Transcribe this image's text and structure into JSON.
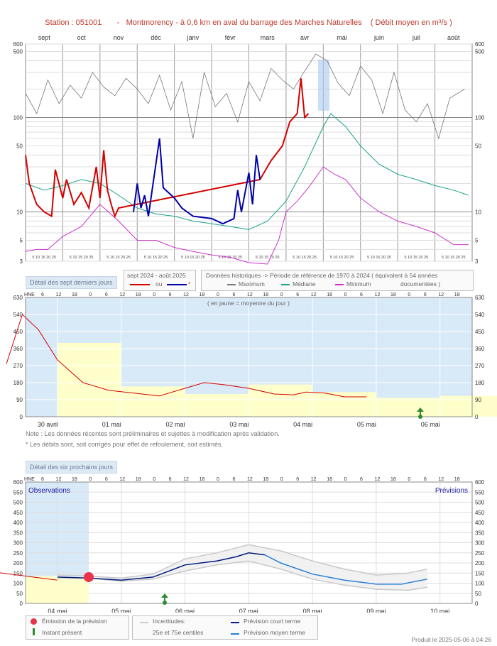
{
  "title": "Station : 051001       -   Montmorency - à 0,6 km en aval du barrage des Marches Naturelles    ( Débit moyen en m³/s )",
  "panel1": {
    "months": [
      "sept",
      "oct",
      "nov",
      "déc",
      "janv",
      "févr",
      "mars",
      "avr",
      "mai",
      "juin",
      "juil",
      "août"
    ],
    "day_ticks": "5 10 15 20 25",
    "y_ticks": [
      "600",
      "500",
      "100",
      "50",
      "10",
      "5",
      "3"
    ]
  },
  "legend1": {
    "detail_label": "Détail des sept derniers jours",
    "period_label": "sept 2024 - août 2025",
    "ou_label": "ou",
    "star_label": "*",
    "hist_label": "Données historiques -> Période de référence  de 1970 à 2024    ( équivalent à 54 années",
    "max_label": "Maximum",
    "median_label": "Médiane",
    "min_label": "Minimum",
    "documented_label": "documentées )"
  },
  "panel2": {
    "hne_label": "HNE",
    "hour_ticks": [
      "6",
      "12",
      "18",
      "0",
      "6",
      "12",
      "18",
      "0",
      "6",
      "12",
      "18",
      "0",
      "6",
      "12",
      "18",
      "0",
      "6",
      "12",
      "18",
      "0",
      "6",
      "12",
      "18",
      "0",
      "6",
      "12",
      "18"
    ],
    "y_ticks": [
      "630",
      "540",
      "450",
      "360",
      "270",
      "180",
      "90",
      "0"
    ],
    "day_labels": [
      "30 avril",
      "01 mai",
      "02 mai",
      "03 mai",
      "04 mai",
      "05 mai",
      "06 mai"
    ],
    "annotation": "( en jaune = moyenne du jour )"
  },
  "notes": {
    "note1": "Note : Les données récentes sont préliminaires et sujettes à modification après validation.",
    "note2": "* Les débits sont, soit corrigés pour effet de refoulement, soit estimés."
  },
  "panel3": {
    "detail_label": "Détail des six prochains jours",
    "hne_label": "HNE",
    "observations_label": "Observations",
    "previsions_label": "Prévisions",
    "y_ticks": [
      "600",
      "550",
      "500",
      "450",
      "400",
      "350",
      "300",
      "250",
      "200",
      "150",
      "100",
      "50",
      "0"
    ],
    "day_labels": [
      "04 mai",
      "05 mai",
      "06 mai",
      "07 mai",
      "08 mai",
      "09 mai",
      "10 mai"
    ]
  },
  "legend3": {
    "emission_label": "Émission de la prévision",
    "present_label": "Instant présent",
    "uncert_label": "Incertitudes:",
    "centiles_label": "25e et 75e centiles",
    "short_label": "Prévision court terme",
    "medium_label": "Prévision moyen terme"
  },
  "footer": "Produit le 2025-05-06 à 04:26",
  "colors": {
    "observed": "#d40000",
    "corrected": "#0000aa",
    "maximum": "#777777",
    "median": "#1aa386",
    "minimum": "#cc33cc",
    "forecast_short": "#001a80",
    "forecast_medium": "#2a7fd4",
    "daily_mean": "#ffffcc",
    "observation_zone": "#d8e9f8"
  },
  "chart_data": [
    {
      "type": "line",
      "title": "Débit moyen en m³/s - sept 2024 à août 2025",
      "y_scale": "log",
      "ylim": [
        3,
        600
      ],
      "x_months": [
        "sept",
        "oct",
        "nov",
        "déc",
        "janv",
        "févr",
        "mars",
        "avr",
        "mai",
        "juin",
        "juil",
        "août"
      ],
      "series": [
        {
          "name": "Maximum",
          "points": [
            [
              0,
              180
            ],
            [
              0.3,
              110
            ],
            [
              0.6,
              250
            ],
            [
              0.9,
              140
            ],
            [
              1.2,
              220
            ],
            [
              1.5,
              160
            ],
            [
              1.8,
              300
            ],
            [
              2.1,
              210
            ],
            [
              2.4,
              170
            ],
            [
              2.7,
              260
            ],
            [
              3,
              200
            ],
            [
              3.3,
              140
            ],
            [
              3.6,
              280
            ],
            [
              3.9,
              120
            ],
            [
              4.2,
              240
            ],
            [
              4.5,
              60
            ],
            [
              4.8,
              300
            ],
            [
              5.1,
              130
            ],
            [
              5.4,
              180
            ],
            [
              5.7,
              90
            ],
            [
              6,
              240
            ],
            [
              6.3,
              150
            ],
            [
              6.6,
              330
            ],
            [
              6.9,
              250
            ],
            [
              7.2,
              200
            ],
            [
              7.5,
              310
            ],
            [
              7.8,
              470
            ],
            [
              8.1,
              400
            ],
            [
              8.4,
              230
            ],
            [
              8.7,
              170
            ],
            [
              9,
              350
            ],
            [
              9.3,
              250
            ],
            [
              9.6,
              110
            ],
            [
              9.9,
              300
            ],
            [
              10.2,
              120
            ],
            [
              10.5,
              90
            ],
            [
              10.8,
              140
            ],
            [
              11.1,
              60
            ],
            [
              11.4,
              160
            ],
            [
              11.8,
              200
            ]
          ]
        },
        {
          "name": "Médiane",
          "points": [
            [
              0,
              20
            ],
            [
              0.5,
              17
            ],
            [
              1,
              19
            ],
            [
              1.5,
              22
            ],
            [
              2,
              20
            ],
            [
              2.5,
              15
            ],
            [
              3,
              11
            ],
            [
              3.5,
              9.5
            ],
            [
              4,
              9
            ],
            [
              4.5,
              8
            ],
            [
              5,
              7.5
            ],
            [
              5.5,
              7
            ],
            [
              6,
              6.5
            ],
            [
              6.5,
              8
            ],
            [
              7,
              13
            ],
            [
              7.5,
              30
            ],
            [
              8,
              80
            ],
            [
              8.2,
              110
            ],
            [
              8.6,
              80
            ],
            [
              9,
              50
            ],
            [
              9.5,
              32
            ],
            [
              10,
              25
            ],
            [
              10.5,
              22
            ],
            [
              11,
              19
            ],
            [
              11.5,
              17
            ],
            [
              11.9,
              15
            ]
          ]
        },
        {
          "name": "Minimum",
          "points": [
            [
              0,
              3.8
            ],
            [
              0.3,
              4
            ],
            [
              0.6,
              4
            ],
            [
              1,
              5.5
            ],
            [
              1.5,
              7
            ],
            [
              2,
              12
            ],
            [
              2.5,
              8
            ],
            [
              3,
              5
            ],
            [
              3.5,
              5
            ],
            [
              4,
              4.2
            ],
            [
              4.5,
              3.8
            ],
            [
              5,
              3.5
            ],
            [
              5.5,
              3.3
            ],
            [
              6,
              2.9
            ],
            [
              6.5,
              2.8
            ],
            [
              6.8,
              5
            ],
            [
              7,
              10
            ],
            [
              7.3,
              13
            ],
            [
              7.6,
              18
            ],
            [
              8,
              30
            ],
            [
              8.3,
              25
            ],
            [
              8.6,
              22
            ],
            [
              9,
              14
            ],
            [
              9.5,
              10
            ],
            [
              10,
              8
            ],
            [
              10.5,
              7
            ],
            [
              11,
              6
            ],
            [
              11.5,
              4.5
            ],
            [
              11.9,
              4.5
            ]
          ]
        },
        {
          "name": "sept 2024 - août 2025",
          "points": [
            [
              0,
              40
            ],
            [
              0.1,
              20
            ],
            [
              0.3,
              12
            ],
            [
              0.5,
              10
            ],
            [
              0.7,
              9
            ],
            [
              0.8,
              28
            ],
            [
              1,
              14
            ],
            [
              1.1,
              22
            ],
            [
              1.3,
              12
            ],
            [
              1.5,
              16
            ],
            [
              1.7,
              11
            ],
            [
              1.9,
              30
            ],
            [
              2,
              14
            ],
            [
              2.1,
              45
            ],
            [
              2.2,
              17
            ],
            [
              2.3,
              12
            ],
            [
              2.4,
              9
            ],
            [
              2.5,
              11
            ],
            [
              6.3,
              22
            ],
            [
              6.6,
              35
            ],
            [
              6.9,
              50
            ],
            [
              7.1,
              90
            ],
            [
              7.3,
              110
            ],
            [
              7.4,
              260
            ],
            [
              7.5,
              100
            ],
            [
              7.6,
              110
            ]
          ]
        },
        {
          "name": "ou *",
          "points": [
            [
              2.9,
              10
            ],
            [
              3,
              20
            ],
            [
              3.1,
              11
            ],
            [
              3.2,
              15
            ],
            [
              3.3,
              9
            ],
            [
              3.6,
              60
            ],
            [
              3.7,
              18
            ],
            [
              4,
              14
            ],
            [
              4.2,
              11
            ],
            [
              4.5,
              9
            ],
            [
              5,
              8.5
            ],
            [
              5.3,
              7.5
            ],
            [
              5.6,
              8.5
            ],
            [
              5.7,
              17
            ],
            [
              5.8,
              10
            ],
            [
              6,
              26
            ],
            [
              6.1,
              12
            ],
            [
              6.2,
              40
            ],
            [
              6.3,
              22
            ]
          ]
        }
      ]
    },
    {
      "type": "line",
      "title": "Détail des sept derniers jours",
      "ylim": [
        0,
        630
      ],
      "x": [
        "30 avril",
        "01 mai",
        "02 mai",
        "03 mai",
        "04 mai",
        "05 mai",
        "06 mai"
      ],
      "daily_mean": [
        390,
        160,
        120,
        170,
        130,
        100,
        110
      ],
      "series": [
        {
          "name": "Débit",
          "points": [
            [
              -0.8,
              280
            ],
            [
              -0.55,
              540
            ],
            [
              -0.3,
              460
            ],
            [
              0,
              300
            ],
            [
              0.4,
              180
            ],
            [
              0.8,
              140
            ],
            [
              1.2,
              125
            ],
            [
              1.6,
              110
            ],
            [
              2,
              150
            ],
            [
              2.3,
              180
            ],
            [
              2.6,
              170
            ],
            [
              3,
              150
            ],
            [
              3.4,
              120
            ],
            [
              3.7,
              115
            ],
            [
              3.9,
              130
            ],
            [
              4.2,
              125
            ],
            [
              4.5,
              105
            ],
            [
              4.85,
              105
            ]
          ]
        }
      ]
    },
    {
      "type": "line",
      "title": "Détail des six prochains jours",
      "ylim": [
        0,
        600
      ],
      "x": [
        "04 mai",
        "05 mai",
        "06 mai",
        "07 mai",
        "08 mai",
        "09 mai",
        "10 mai"
      ],
      "series": [
        {
          "name": "Observations",
          "points": [
            [
              -0.5,
              155
            ],
            [
              0,
              135
            ],
            [
              0.5,
              115
            ]
          ]
        },
        {
          "name": "Prévision court terme",
          "points": [
            [
              0.5,
              130
            ],
            [
              1,
              125
            ],
            [
              1.5,
              115
            ],
            [
              2,
              130
            ],
            [
              2.5,
              190
            ],
            [
              3,
              210
            ],
            [
              3.3,
              230
            ],
            [
              3.5,
              250
            ],
            [
              3.75,
              240
            ]
          ]
        },
        {
          "name": "Prévision moyen terme",
          "points": [
            [
              3.75,
              240
            ],
            [
              4,
              200
            ],
            [
              4.5,
              145
            ],
            [
              5,
              115
            ],
            [
              5.5,
              95
            ],
            [
              5.9,
              95
            ],
            [
              6.3,
              120
            ]
          ]
        },
        {
          "name": "25e centile",
          "points": [
            [
              0.5,
              125
            ],
            [
              1,
              125
            ],
            [
              1.5,
              110
            ],
            [
              2,
              120
            ],
            [
              2.5,
              160
            ],
            [
              3,
              190
            ],
            [
              3.5,
              210
            ],
            [
              4,
              170
            ],
            [
              4.5,
              120
            ],
            [
              5,
              90
            ],
            [
              5.5,
              70
            ],
            [
              6,
              65
            ],
            [
              6.3,
              80
            ]
          ]
        },
        {
          "name": "75e centile",
          "points": [
            [
              0.5,
              140
            ],
            [
              1,
              135
            ],
            [
              1.5,
              125
            ],
            [
              2,
              145
            ],
            [
              2.5,
              220
            ],
            [
              3,
              250
            ],
            [
              3.5,
              290
            ],
            [
              4,
              260
            ],
            [
              4.5,
              210
            ],
            [
              5,
              170
            ],
            [
              5.5,
              140
            ],
            [
              6,
              150
            ],
            [
              6.3,
              170
            ]
          ]
        }
      ]
    }
  ]
}
